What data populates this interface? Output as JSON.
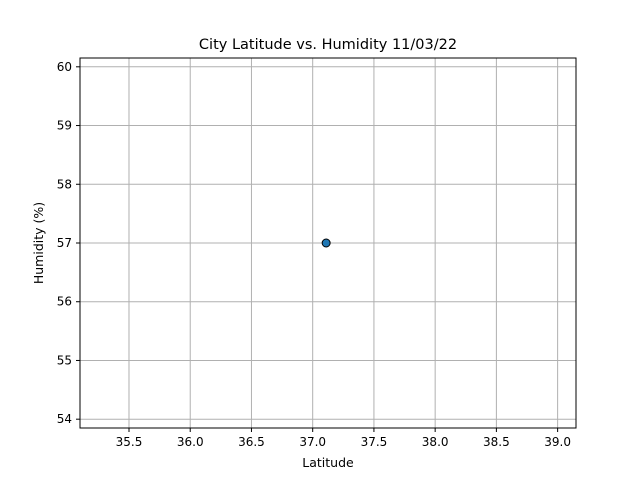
{
  "chart_data": {
    "type": "scatter",
    "title": "City Latitude vs. Humidity 11/03/22",
    "xlabel": "Latitude",
    "ylabel": "Humidity (%)",
    "xlim": [
      35.1,
      39.15
    ],
    "ylim": [
      53.85,
      60.15
    ],
    "xticks": [
      35.5,
      36.0,
      36.5,
      37.0,
      37.5,
      38.0,
      38.5,
      39.0
    ],
    "yticks": [
      54,
      55,
      56,
      57,
      58,
      59,
      60
    ],
    "grid": true,
    "points": [
      {
        "x": 37.11,
        "y": 57
      }
    ],
    "colors": {
      "marker_fill": "#1f77b4",
      "marker_edge": "#000000",
      "grid": "#b0b0b0",
      "axes": "#000000"
    }
  }
}
